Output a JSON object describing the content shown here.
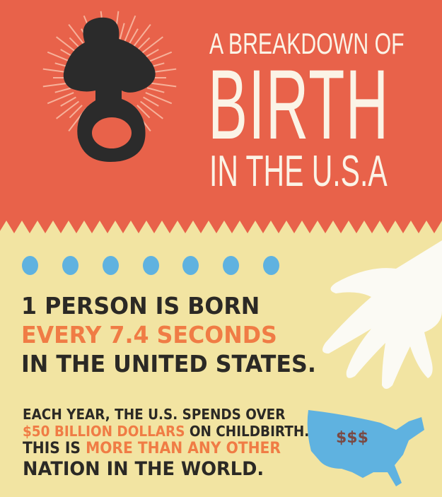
{
  "header": {
    "line1": "A BREAKDOWN OF",
    "line2": "BIRTH",
    "line3": "IN THE U.S.A"
  },
  "stat1": {
    "line1": "1 PERSON IS BORN",
    "line2": "EVERY 7.4 SECONDS",
    "line3": "IN THE UNITED STATES."
  },
  "stat2": {
    "line1": "EACH YEAR, THE U.S. SPENDS OVER",
    "line2_highlight": "$50 BILLION DOLLARS",
    "line2_rest": " ON CHILDBIRTH.",
    "line3_start": "THIS IS ",
    "line3_highlight": "MORE THAN ANY OTHER",
    "line4": "NATION IN THE WORLD."
  },
  "map": {
    "label": "$$$"
  },
  "colors": {
    "red": "#e8624a",
    "yellow": "#f2e4a2",
    "blue": "#5fb2e0",
    "orange": "#f07c45",
    "dark": "#2b2925"
  },
  "icons": [
    "pacifier-icon",
    "hand-icon",
    "usa-map-icon"
  ]
}
